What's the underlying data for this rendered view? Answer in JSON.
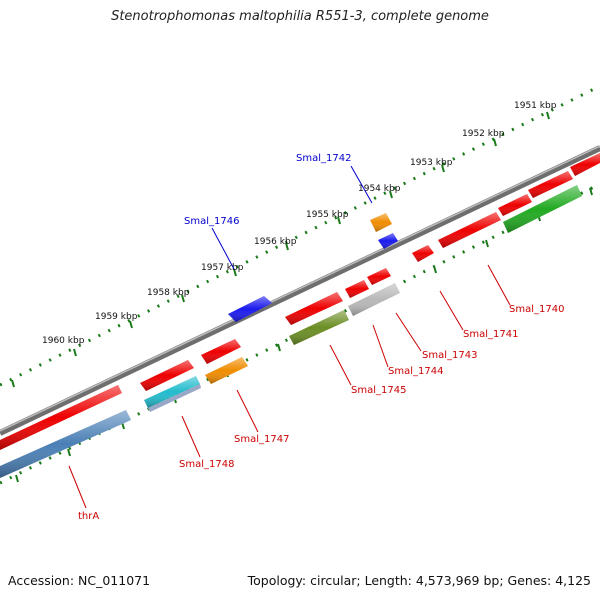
{
  "title": "Stenotrophomonas maltophilia R551-3, complete genome",
  "footer": {
    "accession": "Accession: NC_011071",
    "topology": "Topology: circular; Length: 4,573,969 bp; Genes: 4,125"
  },
  "scale_labels": [
    "1951 kbp",
    "1952 kbp",
    "1953 kbp",
    "1954 kbp",
    "1955 kbp",
    "1956 kbp",
    "1957 kbp",
    "1958 kbp",
    "1959 kbp",
    "1960 kbp"
  ],
  "genes": [
    {
      "label": "Smal_1742",
      "color": "#0000cc"
    },
    {
      "label": "Smal_1746",
      "color": "#0000cc"
    },
    {
      "label": "Smal_1740",
      "color": "#cc0000"
    },
    {
      "label": "Smal_1741",
      "color": "#cc0000"
    },
    {
      "label": "Smal_1743",
      "color": "#cc0000"
    },
    {
      "label": "Smal_1744",
      "color": "#cc0000"
    },
    {
      "label": "Smal_1745",
      "color": "#cc0000"
    },
    {
      "label": "Smal_1747",
      "color": "#cc0000"
    },
    {
      "label": "Smal_1748",
      "color": "#cc0000"
    },
    {
      "label": "thrA",
      "color": "#cc0000"
    }
  ],
  "feature_colors": {
    "cds_red": "#ee0000",
    "cds_blue": "#1a1aee",
    "cds_orange": "#f08c00",
    "cds_green": "#22aa22",
    "cds_olive": "#6b8e23",
    "cds_gray": "#b8b8b8",
    "cds_steel": "#4a7fb5",
    "cds_cyan": "#22bbcc",
    "backbone": "#777777",
    "ticks": "#1a7a1a"
  }
}
